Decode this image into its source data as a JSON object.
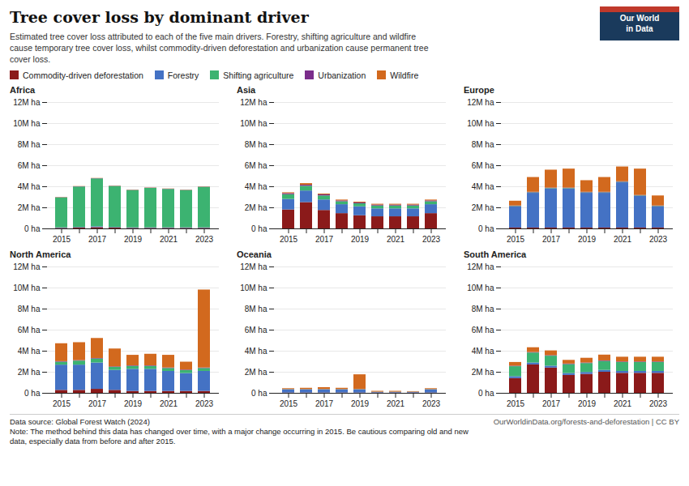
{
  "title": "Tree cover loss by dominant driver",
  "subtitle": "Estimated tree cover loss attributed to each of the five main drivers. Forestry, shifting agriculture and wildfire\ncause temporary tree cover loss, whilst commodity-driven deforestation and urbanization cause permanent tree\ncover loss.",
  "legend": "top left",
  "annotations": [
    "Data source: Global Forest Watch (2024)",
    "OurWorldinData.org/forests-and-deforestation | CC BY",
    "Note: The method behind this data has changed over time, with a major change occurring in 2015. Be cautious comparing old and new\ndata, especially data from before and after 2015.",
    "Our World",
    "in Data"
  ],
  "chart_data": [
    {
      "type": "bar",
      "title": "Africa",
      "stacked": true,
      "grid": true,
      "categories": [
        2015,
        null,
        2017,
        null,
        2019,
        null,
        2021,
        null,
        2023
      ],
      "series": [
        {
          "name": "Commodity-driven deforestation",
          "color": "#8B1A1A",
          "values": [
            0.05,
            0.08,
            0.12,
            0.08,
            0.05,
            0.05,
            0.05,
            0.05,
            0.05
          ]
        },
        {
          "name": "Forestry",
          "color": "#4472C4",
          "values": [
            0.05,
            0.05,
            0.08,
            0.05,
            0.05,
            0.05,
            0.05,
            0.05,
            0.05
          ]
        },
        {
          "name": "Shifting agriculture",
          "color": "#3CB371",
          "values": [
            2.85,
            3.85,
            4.55,
            3.9,
            3.55,
            3.75,
            3.65,
            3.55,
            3.85
          ]
        },
        {
          "name": "Urbanization",
          "color": "#7B2D8B",
          "values": [
            0.02,
            0.02,
            0.02,
            0.02,
            0.02,
            0.02,
            0.02,
            0.02,
            0.02
          ]
        },
        {
          "name": "Wildfire",
          "color": "#D2691E",
          "values": [
            0.02,
            0.02,
            0.02,
            0.02,
            0.02,
            0.02,
            0.02,
            0.02,
            0.02
          ]
        }
      ],
      "ylim": [
        0,
        12
      ],
      "yticks": [
        {
          "value": 0,
          "label": "0 ha"
        },
        {
          "value": 2,
          "label": "2M ha"
        },
        {
          "value": 4,
          "label": "4M ha"
        },
        {
          "value": 6,
          "label": "6M ha"
        },
        {
          "value": 8,
          "label": "8M ha"
        },
        {
          "value": 10,
          "label": "10M ha"
        },
        {
          "value": 12,
          "label": "12M ha"
        }
      ]
    },
    {
      "type": "bar",
      "title": "Asia",
      "stacked": true,
      "grid": true,
      "categories": [
        2015,
        null,
        2017,
        null,
        2019,
        null,
        2021,
        null,
        2023
      ],
      "series": [
        {
          "name": "Commodity-driven deforestation",
          "color": "#8B1A1A",
          "values": [
            1.8,
            2.5,
            1.75,
            1.45,
            1.25,
            1.15,
            1.15,
            1.15,
            1.45
          ]
        },
        {
          "name": "Forestry",
          "color": "#4472C4",
          "values": [
            1.0,
            1.1,
            1.0,
            0.85,
            0.85,
            0.75,
            0.75,
            0.75,
            0.85
          ]
        },
        {
          "name": "Shifting agriculture",
          "color": "#3CB371",
          "values": [
            0.45,
            0.45,
            0.38,
            0.28,
            0.28,
            0.28,
            0.28,
            0.28,
            0.28
          ]
        },
        {
          "name": "Urbanization",
          "color": "#7B2D8B",
          "values": [
            0.1,
            0.1,
            0.1,
            0.08,
            0.08,
            0.08,
            0.08,
            0.08,
            0.08
          ]
        },
        {
          "name": "Wildfire",
          "color": "#D2691E",
          "values": [
            0.08,
            0.15,
            0.08,
            0.08,
            0.08,
            0.08,
            0.08,
            0.08,
            0.08
          ]
        }
      ],
      "ylim": [
        0,
        12
      ],
      "yticks": [
        {
          "value": 0,
          "label": "0 ha"
        },
        {
          "value": 2,
          "label": "2M ha"
        },
        {
          "value": 4,
          "label": "4M ha"
        },
        {
          "value": 6,
          "label": "6M ha"
        },
        {
          "value": 8,
          "label": "8M ha"
        },
        {
          "value": 10,
          "label": "10M ha"
        },
        {
          "value": 12,
          "label": "12M ha"
        }
      ]
    },
    {
      "type": "bar",
      "title": "Europe",
      "stacked": true,
      "grid": true,
      "categories": [
        2015,
        null,
        2017,
        null,
        2019,
        null,
        2021,
        null,
        2023
      ],
      "series": [
        {
          "name": "Commodity-driven deforestation",
          "color": "#8B1A1A",
          "values": [
            0.08,
            0.08,
            0.08,
            0.08,
            0.08,
            0.08,
            0.08,
            0.08,
            0.08
          ]
        },
        {
          "name": "Forestry",
          "color": "#4472C4",
          "values": [
            2.0,
            3.3,
            3.7,
            3.7,
            3.3,
            3.3,
            4.3,
            3.0,
            2.0
          ]
        },
        {
          "name": "Shifting agriculture",
          "color": "#3CB371",
          "values": [
            0.05,
            0.05,
            0.05,
            0.05,
            0.05,
            0.05,
            0.05,
            0.05,
            0.05
          ]
        },
        {
          "name": "Urbanization",
          "color": "#7B2D8B",
          "values": [
            0.05,
            0.05,
            0.05,
            0.05,
            0.05,
            0.05,
            0.05,
            0.05,
            0.05
          ]
        },
        {
          "name": "Wildfire",
          "color": "#D2691E",
          "values": [
            0.45,
            1.4,
            1.7,
            1.8,
            1.1,
            1.4,
            1.4,
            2.5,
            0.95
          ]
        }
      ],
      "ylim": [
        0,
        12
      ],
      "yticks": [
        {
          "value": 0,
          "label": "0 ha"
        },
        {
          "value": 2,
          "label": "2M ha"
        },
        {
          "value": 4,
          "label": "4M ha"
        },
        {
          "value": 6,
          "label": "6M ha"
        },
        {
          "value": 8,
          "label": "8M ha"
        },
        {
          "value": 10,
          "label": "10M ha"
        },
        {
          "value": 12,
          "label": "12M ha"
        }
      ]
    },
    {
      "type": "bar",
      "title": "North America",
      "stacked": true,
      "grid": true,
      "categories": [
        2015,
        null,
        2017,
        null,
        2019,
        null,
        2021,
        null,
        2023
      ],
      "series": [
        {
          "name": "Commodity-driven deforestation",
          "color": "#8B1A1A",
          "values": [
            0.28,
            0.28,
            0.38,
            0.28,
            0.18,
            0.18,
            0.18,
            0.18,
            0.18
          ]
        },
        {
          "name": "Forestry",
          "color": "#4472C4",
          "values": [
            2.4,
            2.4,
            2.5,
            1.9,
            2.1,
            2.1,
            1.9,
            1.7,
            1.9
          ]
        },
        {
          "name": "Shifting agriculture",
          "color": "#3CB371",
          "values": [
            0.28,
            0.38,
            0.38,
            0.28,
            0.28,
            0.28,
            0.28,
            0.28,
            0.28
          ]
        },
        {
          "name": "Urbanization",
          "color": "#7B2D8B",
          "values": [
            0.05,
            0.05,
            0.05,
            0.05,
            0.05,
            0.05,
            0.05,
            0.05,
            0.05
          ]
        },
        {
          "name": "Wildfire",
          "color": "#D2691E",
          "values": [
            1.7,
            1.7,
            1.9,
            1.7,
            1.0,
            1.1,
            1.2,
            0.75,
            7.4
          ]
        }
      ],
      "ylim": [
        0,
        12
      ],
      "yticks": [
        {
          "value": 0,
          "label": "0 ha"
        },
        {
          "value": 2,
          "label": "2M ha"
        },
        {
          "value": 4,
          "label": "4M ha"
        },
        {
          "value": 6,
          "label": "6M ha"
        },
        {
          "value": 8,
          "label": "8M ha"
        },
        {
          "value": 10,
          "label": "10M ha"
        },
        {
          "value": 12,
          "label": "12M ha"
        }
      ]
    },
    {
      "type": "bar",
      "title": "Oceania",
      "stacked": true,
      "grid": true,
      "categories": [
        2015,
        null,
        2017,
        null,
        2019,
        null,
        2021,
        null,
        2023
      ],
      "series": [
        {
          "name": "Commodity-driven deforestation",
          "color": "#8B1A1A",
          "values": [
            0.03,
            0.03,
            0.03,
            0.03,
            0.03,
            0.03,
            0.03,
            0.03,
            0.03
          ]
        },
        {
          "name": "Forestry",
          "color": "#4472C4",
          "values": [
            0.3,
            0.3,
            0.3,
            0.3,
            0.3,
            0.05,
            0.05,
            0.05,
            0.3
          ]
        },
        {
          "name": "Shifting agriculture",
          "color": "#3CB371",
          "values": [
            0.02,
            0.02,
            0.02,
            0.02,
            0.02,
            0.02,
            0.02,
            0.02,
            0.02
          ]
        },
        {
          "name": "Urbanization",
          "color": "#7B2D8B",
          "values": [
            0.01,
            0.01,
            0.01,
            0.01,
            0.01,
            0.01,
            0.01,
            0.01,
            0.01
          ]
        },
        {
          "name": "Wildfire",
          "color": "#D2691E",
          "values": [
            0.08,
            0.12,
            0.18,
            0.12,
            1.4,
            0.08,
            0.08,
            0.05,
            0.08
          ]
        }
      ],
      "ylim": [
        0,
        12
      ],
      "yticks": [
        {
          "value": 0,
          "label": "0 ha"
        },
        {
          "value": 2,
          "label": "2M ha"
        },
        {
          "value": 4,
          "label": "4M ha"
        },
        {
          "value": 6,
          "label": "6M ha"
        },
        {
          "value": 8,
          "label": "8M ha"
        },
        {
          "value": 10,
          "label": "10M ha"
        },
        {
          "value": 12,
          "label": "12M ha"
        }
      ]
    },
    {
      "type": "bar",
      "title": "South America",
      "stacked": true,
      "grid": true,
      "categories": [
        2015,
        null,
        2017,
        null,
        2019,
        null,
        2021,
        null,
        2023
      ],
      "series": [
        {
          "name": "Commodity-driven deforestation",
          "color": "#8B1A1A",
          "values": [
            1.4,
            2.7,
            2.4,
            1.7,
            1.8,
            2.0,
            1.9,
            1.9,
            1.9
          ]
        },
        {
          "name": "Forestry",
          "color": "#4472C4",
          "values": [
            0.18,
            0.18,
            0.18,
            0.18,
            0.18,
            0.18,
            0.18,
            0.18,
            0.18
          ]
        },
        {
          "name": "Shifting agriculture",
          "color": "#3CB371",
          "values": [
            0.95,
            0.95,
            0.95,
            0.85,
            0.85,
            0.85,
            0.85,
            0.85,
            0.85
          ]
        },
        {
          "name": "Urbanization",
          "color": "#7B2D8B",
          "values": [
            0.05,
            0.05,
            0.05,
            0.05,
            0.05,
            0.05,
            0.05,
            0.05,
            0.05
          ]
        },
        {
          "name": "Wildfire",
          "color": "#D2691E",
          "values": [
            0.35,
            0.45,
            0.45,
            0.35,
            0.45,
            0.55,
            0.45,
            0.45,
            0.45
          ]
        }
      ],
      "ylim": [
        0,
        12
      ],
      "yticks": [
        {
          "value": 0,
          "label": "0 ha"
        },
        {
          "value": 2,
          "label": "2M ha"
        },
        {
          "value": 4,
          "label": "4M ha"
        },
        {
          "value": 6,
          "label": "6M ha"
        },
        {
          "value": 8,
          "label": "8M ha"
        },
        {
          "value": 10,
          "label": "10M ha"
        },
        {
          "value": 12,
          "label": "12M ha"
        }
      ]
    }
  ]
}
